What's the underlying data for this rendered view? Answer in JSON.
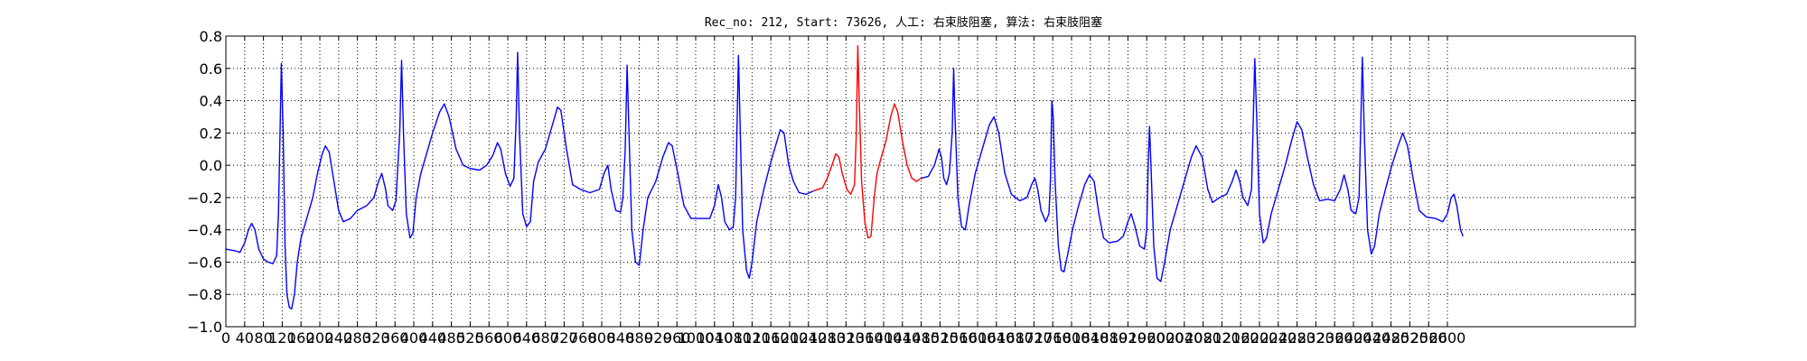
{
  "chart_data": {
    "type": "line",
    "title": "Rec_no: 212, Start: 73626, 人工: 右束肢阻塞, 算法: 右束肢阻塞",
    "xlabel": "",
    "ylabel": "",
    "xlim": [
      0,
      3000
    ],
    "ylim": [
      -1.0,
      0.8
    ],
    "grid": true,
    "colors": {
      "normal": "#0000ff",
      "highlight": "#ff0000",
      "grid": "#000000"
    },
    "x_ticks": [
      0,
      40,
      80,
      120,
      160,
      200,
      240,
      280,
      320,
      360,
      400,
      440,
      480,
      520,
      560,
      600,
      640,
      680,
      720,
      760,
      800,
      840,
      880,
      920,
      960,
      1000,
      1040,
      1080,
      1120,
      1160,
      1200,
      1240,
      1280,
      1320,
      1360,
      1400,
      1440,
      1480,
      1520,
      1560,
      1600,
      1640,
      1680,
      1720,
      1760,
      1800,
      1840,
      1880,
      1920,
      1960,
      2000,
      2040,
      2080,
      2120,
      2160,
      2200,
      2240,
      2280,
      2320,
      2360,
      2400,
      2440,
      2480,
      2520,
      2560,
      2600
    ],
    "x_tick_labels": [
      "0",
      "40",
      "80",
      "120",
      "160",
      "200",
      "240",
      "280",
      "320",
      "360",
      "400",
      "440",
      "480",
      "520",
      "560",
      "600",
      "640",
      "680",
      "720",
      "760",
      "800",
      "840",
      "880",
      "920",
      "960",
      "1000",
      "1040",
      "1080",
      "1120",
      "1160",
      "1200",
      "1240",
      "1280",
      "1320",
      "1360",
      "1400",
      "1440",
      "1480",
      "1520",
      "1560",
      "1600",
      "1640",
      "1680",
      "1720",
      "1760",
      "1800",
      "1840",
      "1880",
      "1920",
      "1960",
      "2000",
      "2040",
      "2080",
      "2120",
      "2160",
      "2200",
      "2240",
      "2280",
      "2320",
      "2360",
      "2400",
      "2440",
      "2480",
      "2520",
      "2560",
      "2600"
    ],
    "y_ticks": [
      -1.0,
      -0.8,
      -0.6,
      -0.4,
      -0.2,
      0.0,
      0.2,
      0.4,
      0.6,
      0.8
    ],
    "y_tick_labels": [
      "−1.0",
      "−0.8",
      "−0.6",
      "−0.4",
      "−0.2",
      "0.0",
      "0.2",
      "0.4",
      "0.6",
      "0.8"
    ],
    "series": [
      {
        "color": "normal",
        "points": [
          [
            0,
            -0.52
          ],
          [
            20,
            -0.53
          ],
          [
            30,
            -0.54
          ],
          [
            40,
            -0.48
          ],
          [
            48,
            -0.4
          ],
          [
            55,
            -0.36
          ],
          [
            62,
            -0.4
          ],
          [
            70,
            -0.52
          ],
          [
            80,
            -0.58
          ],
          [
            90,
            -0.6
          ],
          [
            100,
            -0.61
          ],
          [
            108,
            -0.56
          ],
          [
            112,
            -0.3
          ],
          [
            116,
            0.3
          ],
          [
            118,
            0.63
          ],
          [
            122,
            0.2
          ],
          [
            126,
            -0.5
          ],
          [
            130,
            -0.8
          ],
          [
            135,
            -0.88
          ],
          [
            140,
            -0.89
          ],
          [
            146,
            -0.8
          ],
          [
            152,
            -0.6
          ],
          [
            160,
            -0.45
          ],
          [
            175,
            -0.3
          ],
          [
            185,
            -0.2
          ],
          [
            195,
            -0.05
          ],
          [
            205,
            0.07
          ],
          [
            212,
            0.12
          ],
          [
            220,
            0.08
          ],
          [
            230,
            -0.1
          ],
          [
            240,
            -0.28
          ],
          [
            250,
            -0.35
          ],
          [
            265,
            -0.33
          ],
          [
            280,
            -0.28
          ],
          [
            300,
            -0.25
          ],
          [
            315,
            -0.2
          ],
          [
            325,
            -0.1
          ],
          [
            332,
            -0.05
          ],
          [
            340,
            -0.15
          ],
          [
            345,
            -0.25
          ],
          [
            355,
            -0.28
          ],
          [
            362,
            -0.22
          ],
          [
            370,
            0.2
          ],
          [
            374,
            0.65
          ],
          [
            378,
            0.2
          ],
          [
            384,
            -0.3
          ],
          [
            392,
            -0.45
          ],
          [
            398,
            -0.42
          ],
          [
            405,
            -0.2
          ],
          [
            415,
            -0.05
          ],
          [
            425,
            0.05
          ],
          [
            440,
            0.2
          ],
          [
            455,
            0.33
          ],
          [
            465,
            0.38
          ],
          [
            475,
            0.3
          ],
          [
            490,
            0.1
          ],
          [
            505,
            0.0
          ],
          [
            520,
            -0.02
          ],
          [
            540,
            -0.03
          ],
          [
            555,
            0.0
          ],
          [
            568,
            0.06
          ],
          [
            578,
            0.14
          ],
          [
            585,
            0.1
          ],
          [
            595,
            -0.05
          ],
          [
            605,
            -0.13
          ],
          [
            613,
            -0.08
          ],
          [
            618,
            0.3
          ],
          [
            621,
            0.7
          ],
          [
            625,
            0.2
          ],
          [
            632,
            -0.3
          ],
          [
            640,
            -0.38
          ],
          [
            648,
            -0.35
          ],
          [
            655,
            -0.1
          ],
          [
            665,
            0.02
          ],
          [
            680,
            0.1
          ],
          [
            695,
            0.25
          ],
          [
            706,
            0.36
          ],
          [
            713,
            0.34
          ],
          [
            725,
            0.1
          ],
          [
            738,
            -0.12
          ],
          [
            755,
            -0.15
          ],
          [
            775,
            -0.17
          ],
          [
            795,
            -0.15
          ],
          [
            805,
            -0.05
          ],
          [
            813,
            0.0
          ],
          [
            820,
            -0.15
          ],
          [
            830,
            -0.28
          ],
          [
            840,
            -0.29
          ],
          [
            845,
            -0.2
          ],
          [
            850,
            0.1
          ],
          [
            854,
            0.62
          ],
          [
            858,
            0.2
          ],
          [
            864,
            -0.4
          ],
          [
            872,
            -0.6
          ],
          [
            880,
            -0.62
          ],
          [
            888,
            -0.4
          ],
          [
            898,
            -0.2
          ],
          [
            915,
            -0.1
          ],
          [
            930,
            0.05
          ],
          [
            942,
            0.14
          ],
          [
            950,
            0.12
          ],
          [
            962,
            -0.05
          ],
          [
            975,
            -0.25
          ],
          [
            990,
            -0.33
          ],
          [
            1010,
            -0.33
          ],
          [
            1030,
            -0.33
          ],
          [
            1040,
            -0.25
          ],
          [
            1048,
            -0.12
          ],
          [
            1055,
            -0.2
          ],
          [
            1062,
            -0.35
          ],
          [
            1072,
            -0.4
          ],
          [
            1080,
            -0.38
          ],
          [
            1085,
            -0.2
          ],
          [
            1089,
            0.4
          ],
          [
            1091,
            0.68
          ],
          [
            1095,
            0.2
          ],
          [
            1100,
            -0.4
          ],
          [
            1108,
            -0.65
          ],
          [
            1114,
            -0.7
          ],
          [
            1120,
            -0.6
          ],
          [
            1130,
            -0.35
          ],
          [
            1145,
            -0.15
          ],
          [
            1158,
            0.0
          ],
          [
            1170,
            0.12
          ],
          [
            1180,
            0.22
          ],
          [
            1188,
            0.2
          ],
          [
            1198,
            0.0
          ],
          [
            1208,
            -0.1
          ],
          [
            1220,
            -0.17
          ],
          [
            1235,
            -0.18
          ],
          [
            1250,
            -0.16
          ]
        ]
      },
      {
        "color": "highlight",
        "points": [
          [
            1250,
            -0.16
          ],
          [
            1270,
            -0.14
          ],
          [
            1280,
            -0.08
          ],
          [
            1290,
            0.0
          ],
          [
            1298,
            0.07
          ],
          [
            1305,
            0.05
          ],
          [
            1312,
            -0.05
          ],
          [
            1322,
            -0.15
          ],
          [
            1330,
            -0.18
          ],
          [
            1338,
            -0.12
          ],
          [
            1342,
            0.2
          ],
          [
            1345,
            0.74
          ],
          [
            1348,
            0.4
          ],
          [
            1353,
            -0.1
          ],
          [
            1360,
            -0.35
          ],
          [
            1367,
            -0.45
          ],
          [
            1373,
            -0.44
          ],
          [
            1380,
            -0.2
          ],
          [
            1386,
            -0.05
          ],
          [
            1395,
            0.05
          ],
          [
            1405,
            0.15
          ],
          [
            1415,
            0.3
          ],
          [
            1423,
            0.38
          ],
          [
            1430,
            0.33
          ],
          [
            1440,
            0.15
          ],
          [
            1450,
            0.0
          ],
          [
            1460,
            -0.08
          ],
          [
            1470,
            -0.1
          ],
          [
            1480,
            -0.08
          ]
        ]
      },
      {
        "color": "normal",
        "points": [
          [
            1480,
            -0.08
          ],
          [
            1495,
            -0.07
          ],
          [
            1508,
            0.0
          ],
          [
            1518,
            0.1
          ],
          [
            1523,
            0.05
          ],
          [
            1528,
            -0.08
          ],
          [
            1534,
            -0.12
          ],
          [
            1540,
            -0.05
          ],
          [
            1546,
            0.2
          ],
          [
            1549,
            0.6
          ],
          [
            1552,
            0.3
          ],
          [
            1558,
            -0.2
          ],
          [
            1566,
            -0.38
          ],
          [
            1574,
            -0.4
          ],
          [
            1582,
            -0.25
          ],
          [
            1595,
            -0.05
          ],
          [
            1610,
            0.1
          ],
          [
            1625,
            0.25
          ],
          [
            1635,
            0.3
          ],
          [
            1645,
            0.2
          ],
          [
            1658,
            -0.05
          ],
          [
            1672,
            -0.18
          ],
          [
            1690,
            -0.22
          ],
          [
            1705,
            -0.2
          ],
          [
            1715,
            -0.12
          ],
          [
            1722,
            -0.08
          ],
          [
            1728,
            -0.15
          ],
          [
            1735,
            -0.28
          ],
          [
            1745,
            -0.35
          ],
          [
            1752,
            -0.3
          ],
          [
            1755,
            -0.1
          ],
          [
            1758,
            0.4
          ],
          [
            1761,
            0.3
          ],
          [
            1765,
            -0.1
          ],
          [
            1772,
            -0.5
          ],
          [
            1778,
            -0.65
          ],
          [
            1784,
            -0.66
          ],
          [
            1792,
            -0.55
          ],
          [
            1802,
            -0.4
          ],
          [
            1815,
            -0.25
          ],
          [
            1828,
            -0.12
          ],
          [
            1838,
            -0.06
          ],
          [
            1848,
            -0.1
          ],
          [
            1858,
            -0.3
          ],
          [
            1868,
            -0.45
          ],
          [
            1880,
            -0.48
          ],
          [
            1898,
            -0.47
          ],
          [
            1910,
            -0.44
          ],
          [
            1920,
            -0.35
          ],
          [
            1927,
            -0.3
          ],
          [
            1935,
            -0.38
          ],
          [
            1945,
            -0.5
          ],
          [
            1955,
            -0.52
          ],
          [
            1960,
            -0.4
          ],
          [
            1963,
            0.0
          ],
          [
            1966,
            0.24
          ],
          [
            1969,
            0.0
          ],
          [
            1975,
            -0.5
          ],
          [
            1982,
            -0.7
          ],
          [
            1990,
            -0.72
          ],
          [
            1998,
            -0.6
          ],
          [
            2010,
            -0.4
          ],
          [
            2025,
            -0.25
          ],
          [
            2040,
            -0.1
          ],
          [
            2055,
            0.05
          ],
          [
            2065,
            0.12
          ],
          [
            2078,
            0.05
          ],
          [
            2090,
            -0.15
          ],
          [
            2100,
            -0.23
          ],
          [
            2115,
            -0.2
          ],
          [
            2130,
            -0.18
          ],
          [
            2142,
            -0.1
          ],
          [
            2150,
            -0.03
          ],
          [
            2158,
            -0.1
          ],
          [
            2165,
            -0.2
          ],
          [
            2175,
            -0.25
          ],
          [
            2183,
            -0.15
          ],
          [
            2187,
            0.3
          ],
          [
            2190,
            0.66
          ],
          [
            2194,
            0.3
          ],
          [
            2200,
            -0.3
          ],
          [
            2208,
            -0.48
          ],
          [
            2215,
            -0.45
          ],
          [
            2225,
            -0.3
          ],
          [
            2240,
            -0.15
          ],
          [
            2255,
            0.0
          ],
          [
            2268,
            0.15
          ],
          [
            2280,
            0.27
          ],
          [
            2290,
            0.22
          ],
          [
            2302,
            0.05
          ],
          [
            2315,
            -0.12
          ],
          [
            2328,
            -0.22
          ],
          [
            2345,
            -0.21
          ],
          [
            2360,
            -0.22
          ],
          [
            2372,
            -0.15
          ],
          [
            2380,
            -0.06
          ],
          [
            2388,
            -0.15
          ],
          [
            2395,
            -0.28
          ],
          [
            2405,
            -0.3
          ],
          [
            2412,
            -0.2
          ],
          [
            2416,
            0.3
          ],
          [
            2419,
            0.67
          ],
          [
            2423,
            0.2
          ],
          [
            2430,
            -0.4
          ],
          [
            2438,
            -0.55
          ],
          [
            2445,
            -0.5
          ],
          [
            2455,
            -0.3
          ],
          [
            2468,
            -0.15
          ],
          [
            2482,
            0.0
          ],
          [
            2495,
            0.12
          ],
          [
            2505,
            0.2
          ],
          [
            2515,
            0.12
          ],
          [
            2528,
            -0.1
          ],
          [
            2540,
            -0.28
          ],
          [
            2555,
            -0.32
          ],
          [
            2575,
            -0.33
          ],
          [
            2590,
            -0.35
          ],
          [
            2600,
            -0.3
          ],
          [
            2608,
            -0.2
          ],
          [
            2614,
            -0.18
          ],
          [
            2620,
            -0.25
          ],
          [
            2628,
            -0.4
          ],
          [
            2633,
            -0.44
          ]
        ]
      }
    ]
  }
}
